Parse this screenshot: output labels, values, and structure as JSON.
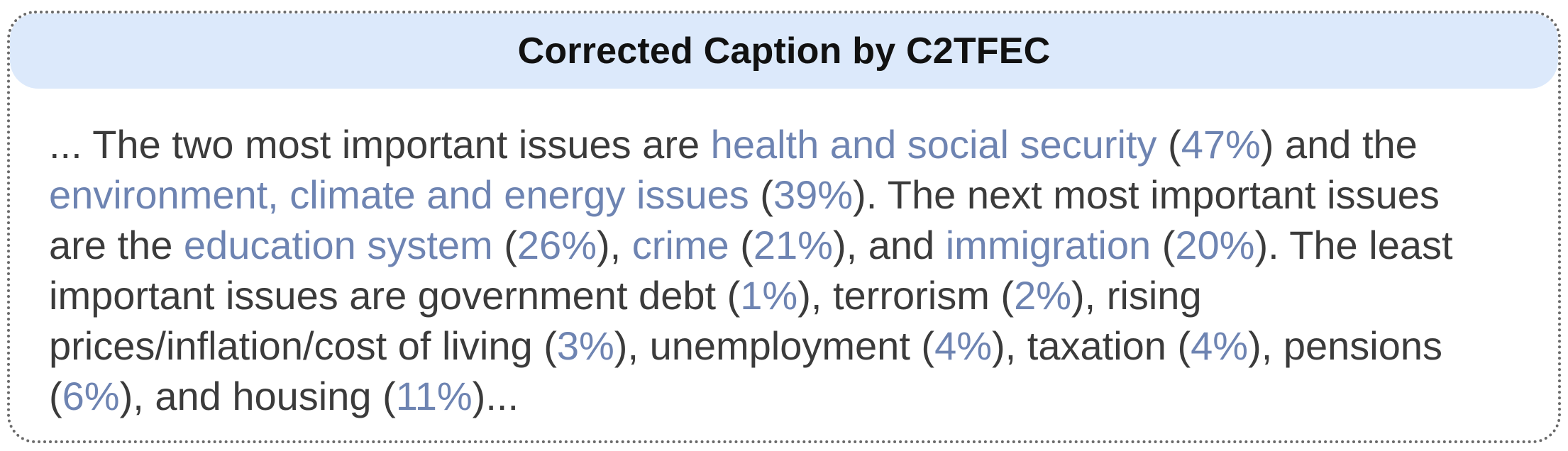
{
  "header": {
    "title": "Corrected Caption by C2TFEC"
  },
  "colors": {
    "header_background": "#dce9fb",
    "highlight": "#6e84b2",
    "body_text": "#3b3b3b",
    "border": "#6a6a6a"
  },
  "caption": {
    "lines": [
      [
        {
          "text": "... The two most important issues are ",
          "highlight": false
        },
        {
          "text": "health and social security",
          "highlight": true
        },
        {
          "text": " (",
          "highlight": false
        },
        {
          "text": "47%",
          "highlight": true
        },
        {
          "text": ") and the",
          "highlight": false
        }
      ],
      [
        {
          "text": "environment, climate and energy issues",
          "highlight": true
        },
        {
          "text": " (",
          "highlight": false
        },
        {
          "text": "39%",
          "highlight": true
        },
        {
          "text": "). The next most important issues",
          "highlight": false
        }
      ],
      [
        {
          "text": "are the ",
          "highlight": false
        },
        {
          "text": "education system",
          "highlight": true
        },
        {
          "text": " (",
          "highlight": false
        },
        {
          "text": "26%",
          "highlight": true
        },
        {
          "text": "), ",
          "highlight": false
        },
        {
          "text": "crime",
          "highlight": true
        },
        {
          "text": " (",
          "highlight": false
        },
        {
          "text": "21%",
          "highlight": true
        },
        {
          "text": "), and ",
          "highlight": false
        },
        {
          "text": "immigration",
          "highlight": true
        },
        {
          "text": " (",
          "highlight": false
        },
        {
          "text": "20%",
          "highlight": true
        },
        {
          "text": "). The least",
          "highlight": false
        }
      ],
      [
        {
          "text": "important issues are government debt (",
          "highlight": false
        },
        {
          "text": "1%",
          "highlight": true
        },
        {
          "text": "), terrorism (",
          "highlight": false
        },
        {
          "text": "2%",
          "highlight": true
        },
        {
          "text": "), rising",
          "highlight": false
        }
      ],
      [
        {
          "text": "prices/inflation/cost of living (",
          "highlight": false
        },
        {
          "text": "3%",
          "highlight": true
        },
        {
          "text": "), unemployment (",
          "highlight": false
        },
        {
          "text": "4%",
          "highlight": true
        },
        {
          "text": "), taxation (",
          "highlight": false
        },
        {
          "text": "4%",
          "highlight": true
        },
        {
          "text": "), pensions",
          "highlight": false
        }
      ],
      [
        {
          "text": "(",
          "highlight": false
        },
        {
          "text": "6%",
          "highlight": true
        },
        {
          "text": "), and housing (",
          "highlight": false
        },
        {
          "text": "11%",
          "highlight": true
        },
        {
          "text": ")...",
          "highlight": false
        }
      ]
    ]
  }
}
